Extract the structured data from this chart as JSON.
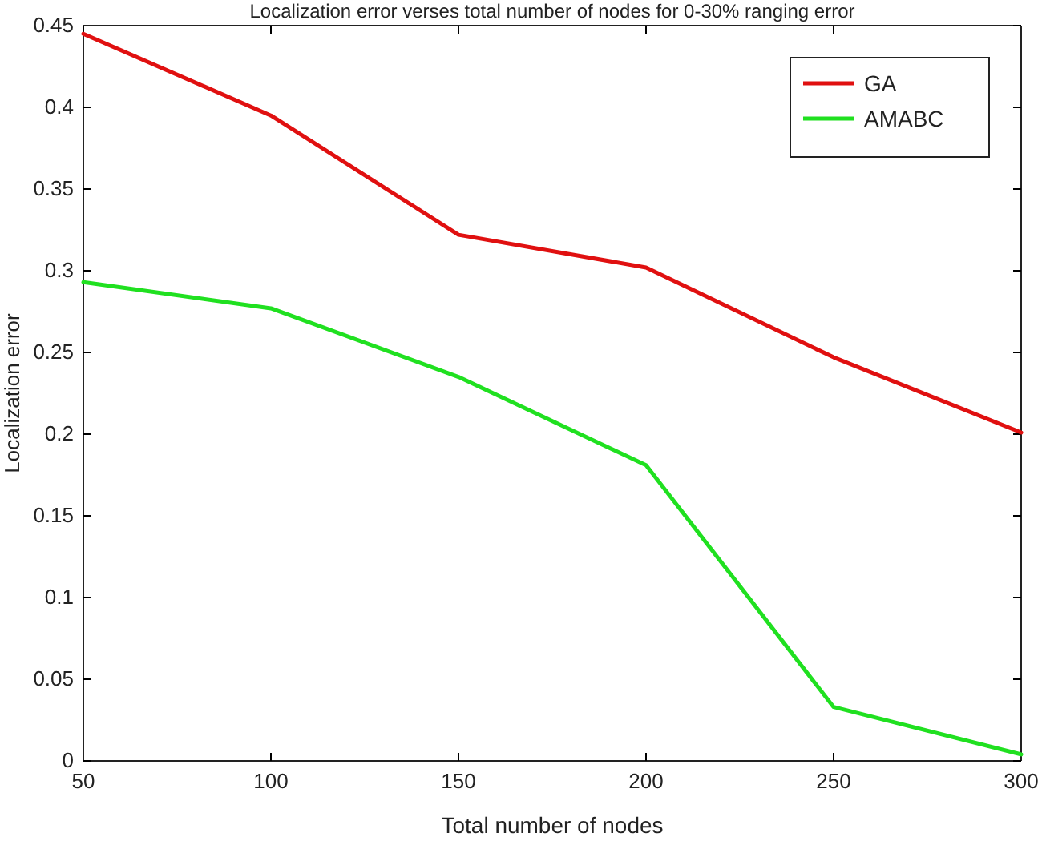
{
  "chart_data": {
    "type": "line",
    "title": "Localization error verses total number of nodes for 0-30% ranging error",
    "xlabel": "Total number of nodes",
    "ylabel": "Localization error",
    "x": [
      50,
      100,
      150,
      200,
      250,
      300
    ],
    "series": [
      {
        "name": "GA",
        "color": "#e01010",
        "values": [
          0.445,
          0.395,
          0.322,
          0.302,
          0.247,
          0.201
        ]
      },
      {
        "name": "AMABC",
        "color": "#20e020",
        "values": [
          0.293,
          0.277,
          0.235,
          0.181,
          0.033,
          0.004
        ]
      }
    ],
    "xlim": [
      50,
      300
    ],
    "xticks": [
      50,
      100,
      150,
      200,
      250,
      300
    ],
    "ylim": [
      0,
      0.45
    ],
    "yticks": [
      {
        "value": 0,
        "label": "0"
      },
      {
        "value": 0.05,
        "label": "0.05"
      },
      {
        "value": 0.1,
        "label": "0.1"
      },
      {
        "value": 0.15,
        "label": "0.15"
      },
      {
        "value": 0.2,
        "label": "0.2"
      },
      {
        "value": 0.25,
        "label": "0.25"
      },
      {
        "value": 0.3,
        "label": "0.3"
      },
      {
        "value": 0.35,
        "label": "0.35"
      },
      {
        "value": 0.4,
        "label": "0.4"
      },
      {
        "value": 0.45,
        "label": "0.45"
      }
    ],
    "grid": false,
    "legend": "top right",
    "marker": "none",
    "line_style": "solid"
  }
}
